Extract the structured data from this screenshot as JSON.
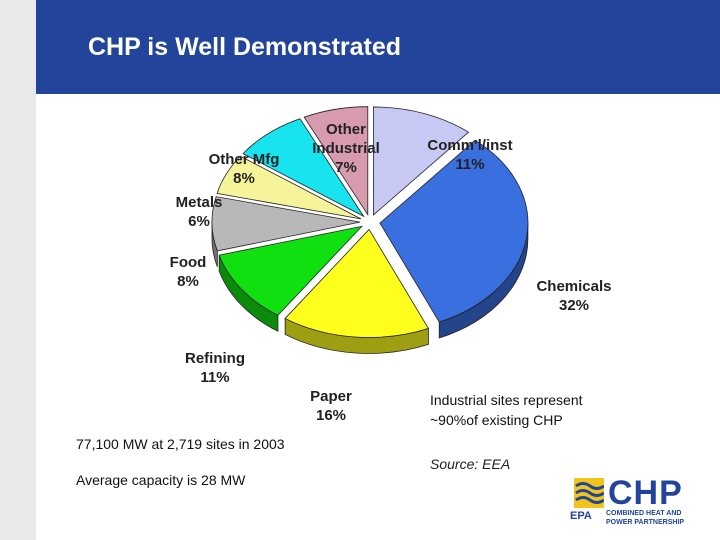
{
  "slide": {
    "title": "CHP is Well Demonstrated"
  },
  "notes": {
    "line1": "77,100 MW at 2,719 sites in 2003",
    "line2": "Average capacity is 28 MW",
    "industrial": "Industrial sites represent\n~90%of existing CHP",
    "source": "Source:  EEA"
  },
  "logo": {
    "word": "CHP",
    "epa": "EPA",
    "subtitle": "COMBINED HEAT AND\nPOWER PARTNERSHIP"
  },
  "chart_data": {
    "type": "pie",
    "title": "",
    "slices": [
      {
        "label": "Comm'l/inst",
        "value": 11,
        "display": "11%",
        "color": "#c8c8f4"
      },
      {
        "label": "Chemicals",
        "value": 32,
        "display": "32%",
        "color": "#3a6fe0"
      },
      {
        "label": "Paper",
        "value": 16,
        "display": "16%",
        "color": "#ffff1e"
      },
      {
        "label": "Refining",
        "value": 11,
        "display": "11%",
        "color": "#10e010"
      },
      {
        "label": "Food",
        "value": 8,
        "display": "8%",
        "color": "#b8b8b8"
      },
      {
        "label": "Metals",
        "value": 6,
        "display": "6%",
        "color": "#f6f49a"
      },
      {
        "label": "Other Mfg",
        "value": 8,
        "display": "8%",
        "color": "#18e4f0"
      },
      {
        "label": "Other Industrial",
        "value": 7,
        "display": "7%",
        "color": "#d89aae"
      }
    ]
  }
}
